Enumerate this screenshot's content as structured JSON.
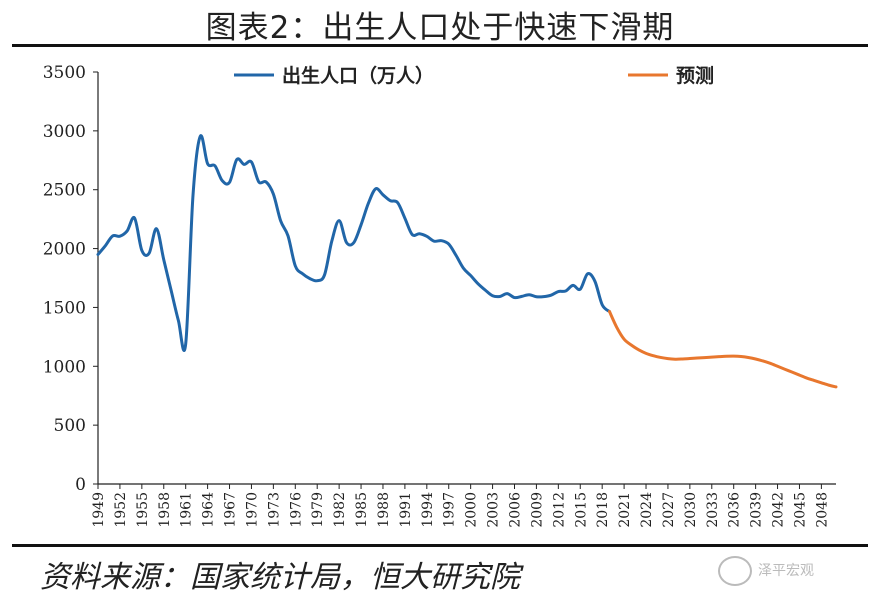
{
  "title": "图表2：出生人口处于快速下滑期",
  "source": "资料来源：国家统计局，恒大研究院",
  "watermark": "泽平宏观",
  "chart_data": {
    "type": "line",
    "xlim": [
      1949,
      2050
    ],
    "ylim": [
      0,
      3500
    ],
    "y_ticks": [
      0,
      500,
      1000,
      1500,
      2000,
      2500,
      3000,
      3500
    ],
    "x_ticks": [
      1949,
      1952,
      1955,
      1958,
      1961,
      1964,
      1967,
      1970,
      1973,
      1976,
      1979,
      1982,
      1985,
      1988,
      1991,
      1994,
      1997,
      2000,
      2003,
      2006,
      2009,
      2012,
      2015,
      2018,
      2021,
      2024,
      2027,
      2030,
      2033,
      2036,
      2039,
      2042,
      2045,
      2048
    ],
    "x_tick_labels": [
      "1949",
      "1952",
      "1955",
      "1958",
      "1961",
      "1964",
      "1967",
      "1970",
      "1973",
      "1976",
      "1979",
      "1982",
      "1985",
      "1988",
      "1991",
      "1994",
      "1997",
      "2000",
      "2003",
      "2006",
      "2009",
      "2012",
      "2015",
      "2018",
      "2021",
      "2024",
      "2027",
      "2030",
      "2033",
      "2036",
      "2039",
      "2042",
      "2045",
      "2048"
    ],
    "legend_position": "top",
    "grid": false,
    "series": [
      {
        "name": "出生人口（万人）",
        "color": "#2166a8",
        "x": [
          1949,
          1950,
          1951,
          1952,
          1953,
          1954,
          1955,
          1956,
          1957,
          1958,
          1959,
          1960,
          1961,
          1962,
          1963,
          1964,
          1965,
          1966,
          1967,
          1968,
          1969,
          1970,
          1971,
          1972,
          1973,
          1974,
          1975,
          1976,
          1977,
          1978,
          1979,
          1980,
          1981,
          1982,
          1983,
          1984,
          1985,
          1986,
          1987,
          1988,
          1989,
          1990,
          1991,
          1992,
          1993,
          1994,
          1995,
          1996,
          1997,
          1998,
          1999,
          2000,
          2001,
          2002,
          2003,
          2004,
          2005,
          2006,
          2007,
          2008,
          2009,
          2010,
          2011,
          2012,
          2013,
          2014,
          2015,
          2016,
          2017,
          2018,
          2019
        ],
        "y": [
          1950,
          2023,
          2107,
          2105,
          2151,
          2260,
          1984,
          1961,
          2169,
          1905,
          1647,
          1389,
          1189,
          2451,
          2954,
          2721,
          2704,
          2577,
          2563,
          2757,
          2715,
          2736,
          2567,
          2566,
          2463,
          2235,
          2109,
          1853,
          1786,
          1745,
          1727,
          1776,
          2064,
          2237,
          2052,
          2050,
          2202,
          2384,
          2508,
          2457,
          2407,
          2391,
          2258,
          2119,
          2126,
          2104,
          2063,
          2067,
          2038,
          1942,
          1834,
          1771,
          1702,
          1647,
          1599,
          1593,
          1617,
          1584,
          1594,
          1608,
          1591,
          1592,
          1604,
          1635,
          1640,
          1687,
          1655,
          1786,
          1723,
          1523,
          1465
        ]
      },
      {
        "name": "预测",
        "color": "#e8772e",
        "x": [
          2019,
          2020,
          2021,
          2022,
          2023,
          2024,
          2025,
          2026,
          2027,
          2028,
          2029,
          2030,
          2031,
          2032,
          2033,
          2034,
          2035,
          2036,
          2037,
          2038,
          2039,
          2040,
          2041,
          2042,
          2043,
          2044,
          2045,
          2046,
          2047,
          2048,
          2049,
          2050
        ],
        "y": [
          1465,
          1330,
          1230,
          1180,
          1140,
          1110,
          1090,
          1075,
          1065,
          1060,
          1062,
          1066,
          1070,
          1074,
          1078,
          1082,
          1085,
          1086,
          1083,
          1075,
          1062,
          1045,
          1025,
          1000,
          975,
          950,
          925,
          900,
          880,
          860,
          840,
          825
        ]
      }
    ]
  }
}
